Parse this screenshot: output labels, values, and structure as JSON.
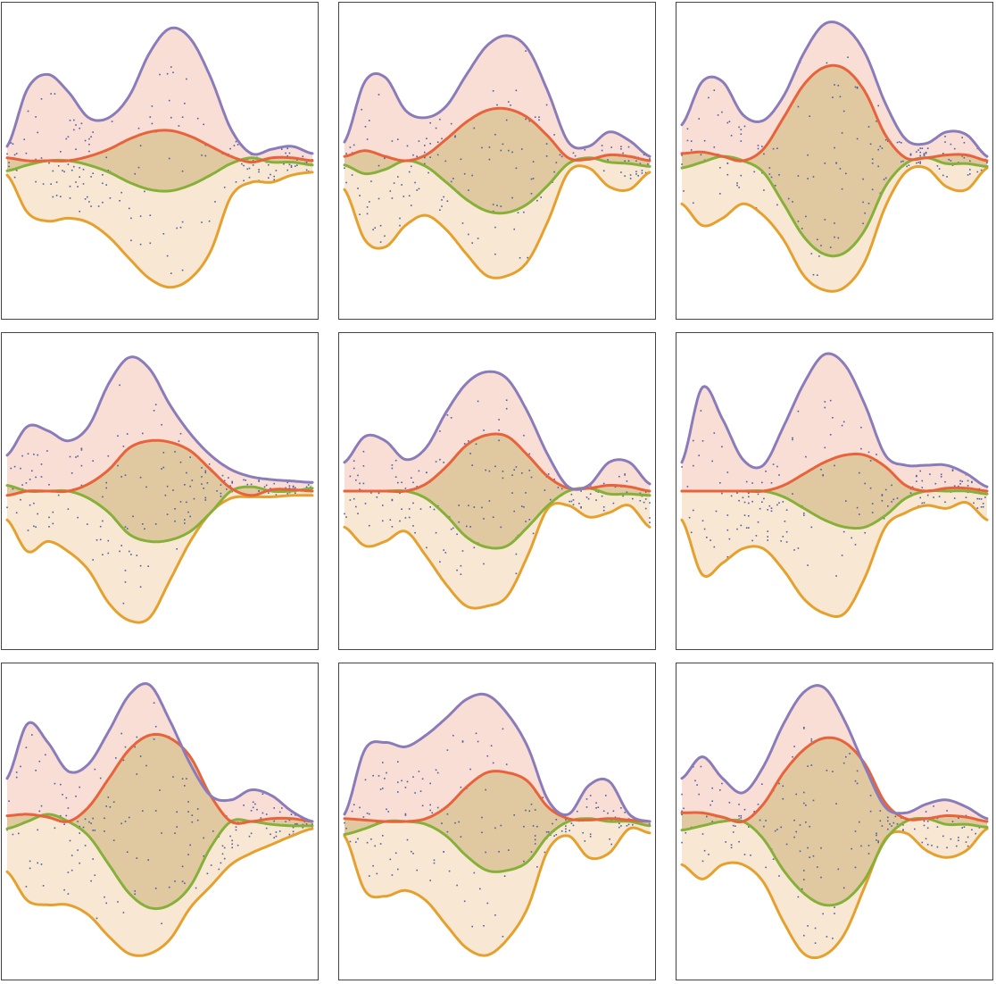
{
  "colors": {
    "upper_fill": "#f9ded6",
    "lower_fill": "#f8e8d3",
    "middle_fill": "#e5ecd3",
    "overlap_fill": "#e0c8a0",
    "purple_line": "#8a7cbb",
    "red_line": "#e8623b",
    "green_line": "#86b03a",
    "orange_line": "#e5a02d",
    "points": "#4a5fa8"
  },
  "chart_data": [
    {
      "type": "area",
      "x_range": [
        0,
        1
      ],
      "y_range": [
        -1,
        1
      ],
      "grid": false,
      "legend": "none",
      "purple": [
        0.1,
        0.5,
        0.6,
        0.48,
        0.3,
        0.3,
        0.45,
        0.75,
        0.92,
        0.85,
        0.58,
        0.22,
        0.05,
        0.08,
        0.1,
        0.05
      ],
      "red": [
        0.02,
        0.0,
        0.0,
        0.0,
        0.03,
        0.08,
        0.15,
        0.2,
        0.21,
        0.17,
        0.1,
        0.03,
        -0.01,
        0.02,
        0.02,
        0.0
      ],
      "green": [
        -0.07,
        -0.03,
        0.0,
        0.0,
        -0.03,
        -0.08,
        -0.15,
        -0.2,
        -0.21,
        -0.17,
        -0.1,
        -0.02,
        0.02,
        -0.01,
        -0.01,
        -0.03
      ],
      "orange": [
        -0.1,
        -0.36,
        -0.42,
        -0.4,
        -0.43,
        -0.53,
        -0.68,
        -0.82,
        -0.88,
        -0.82,
        -0.63,
        -0.25,
        -0.15,
        -0.15,
        -0.1,
        -0.08
      ],
      "points": 180
    },
    {
      "type": "area",
      "x_range": [
        0,
        1
      ],
      "y_range": [
        -1,
        1
      ],
      "grid": false,
      "legend": "none",
      "purple": [
        0.13,
        0.55,
        0.58,
        0.35,
        0.3,
        0.38,
        0.6,
        0.8,
        0.87,
        0.78,
        0.48,
        0.13,
        0.1,
        0.2,
        0.14,
        0.03
      ],
      "red": [
        0.03,
        0.07,
        0.03,
        0.0,
        0.04,
        0.15,
        0.27,
        0.35,
        0.36,
        0.3,
        0.17,
        0.02,
        0.01,
        0.04,
        0.03,
        0.0
      ],
      "green": [
        -0.03,
        -0.09,
        -0.06,
        0.0,
        -0.04,
        -0.15,
        -0.27,
        -0.35,
        -0.36,
        -0.3,
        -0.17,
        -0.02,
        0.02,
        -0.01,
        -0.02,
        -0.04
      ],
      "orange": [
        -0.2,
        -0.55,
        -0.6,
        -0.45,
        -0.38,
        -0.48,
        -0.65,
        -0.8,
        -0.8,
        -0.7,
        -0.42,
        -0.08,
        -0.05,
        -0.18,
        -0.2,
        -0.08
      ],
      "points": 180
    },
    {
      "type": "area",
      "x_range": [
        0,
        1
      ],
      "y_range": [
        -1,
        1
      ],
      "grid": false,
      "legend": "none",
      "purple": [
        0.25,
        0.55,
        0.55,
        0.32,
        0.28,
        0.45,
        0.75,
        0.95,
        0.93,
        0.75,
        0.4,
        0.15,
        0.12,
        0.2,
        0.18,
        0.03
      ],
      "red": [
        0.05,
        0.06,
        0.03,
        0.0,
        0.08,
        0.3,
        0.53,
        0.65,
        0.64,
        0.48,
        0.18,
        0.02,
        0.02,
        0.04,
        0.04,
        0.0
      ],
      "green": [
        -0.05,
        -0.01,
        0.03,
        0.0,
        -0.08,
        -0.3,
        -0.53,
        -0.65,
        -0.64,
        -0.48,
        -0.18,
        -0.02,
        0.02,
        -0.02,
        -0.02,
        -0.04
      ],
      "orange": [
        -0.3,
        -0.45,
        -0.4,
        -0.3,
        -0.38,
        -0.55,
        -0.8,
        -0.9,
        -0.88,
        -0.7,
        -0.32,
        -0.08,
        -0.05,
        -0.18,
        -0.2,
        -0.05
      ],
      "points": 180
    },
    {
      "type": "area",
      "x_range": [
        0,
        1
      ],
      "y_range": [
        -1,
        1
      ],
      "grid": false,
      "legend": "none",
      "purple": [
        0.25,
        0.45,
        0.42,
        0.35,
        0.45,
        0.75,
        0.93,
        0.85,
        0.6,
        0.4,
        0.25,
        0.15,
        0.1,
        0.08,
        0.07,
        0.06
      ],
      "red": [
        -0.03,
        0.0,
        0.0,
        0.0,
        0.05,
        0.15,
        0.3,
        0.35,
        0.34,
        0.28,
        0.15,
        0.02,
        -0.03,
        0.01,
        0.01,
        0.0
      ],
      "green": [
        0.04,
        0.0,
        0.0,
        0.0,
        -0.05,
        -0.15,
        -0.3,
        -0.35,
        -0.34,
        -0.28,
        -0.15,
        0.0,
        0.03,
        0.0,
        0.0,
        0.02
      ],
      "orange": [
        -0.2,
        -0.42,
        -0.35,
        -0.42,
        -0.55,
        -0.78,
        -0.9,
        -0.88,
        -0.62,
        -0.35,
        -0.15,
        -0.05,
        -0.04,
        -0.04,
        -0.03,
        -0.03
      ],
      "points": 180
    },
    {
      "type": "area",
      "x_range": [
        0,
        1
      ],
      "y_range": [
        -1,
        1
      ],
      "grid": false,
      "legend": "none",
      "purple": [
        0.2,
        0.38,
        0.35,
        0.22,
        0.3,
        0.55,
        0.75,
        0.83,
        0.78,
        0.55,
        0.25,
        0.03,
        0.04,
        0.2,
        0.2,
        0.05
      ],
      "red": [
        0.0,
        0.0,
        0.0,
        0.0,
        0.05,
        0.17,
        0.32,
        0.39,
        0.38,
        0.25,
        0.1,
        0.02,
        0.02,
        0.04,
        0.03,
        0.0
      ],
      "green": [
        0.0,
        0.0,
        0.0,
        0.0,
        -0.05,
        -0.17,
        -0.32,
        -0.39,
        -0.38,
        -0.25,
        -0.1,
        0.0,
        0.02,
        -0.02,
        -0.02,
        -0.03
      ],
      "orange": [
        -0.25,
        -0.38,
        -0.35,
        -0.28,
        -0.45,
        -0.65,
        -0.8,
        -0.8,
        -0.73,
        -0.45,
        -0.12,
        -0.1,
        -0.18,
        -0.15,
        -0.1,
        -0.25
      ],
      "points": 180
    },
    {
      "type": "area",
      "x_range": [
        0,
        1
      ],
      "y_range": [
        -1,
        1
      ],
      "grid": false,
      "legend": "none",
      "purple": [
        0.2,
        0.72,
        0.5,
        0.22,
        0.18,
        0.45,
        0.75,
        0.95,
        0.88,
        0.6,
        0.25,
        0.18,
        0.18,
        0.18,
        0.12,
        0.03
      ],
      "red": [
        0.0,
        0.0,
        0.0,
        0.0,
        0.0,
        0.04,
        0.12,
        0.2,
        0.25,
        0.25,
        0.17,
        0.04,
        0.0,
        0.02,
        0.02,
        0.0
      ],
      "green": [
        0.0,
        0.0,
        0.0,
        0.0,
        0.0,
        -0.04,
        -0.12,
        -0.2,
        -0.25,
        -0.25,
        -0.17,
        -0.05,
        0.0,
        0.0,
        0.0,
        -0.02
      ],
      "orange": [
        -0.2,
        -0.58,
        -0.5,
        -0.4,
        -0.4,
        -0.55,
        -0.75,
        -0.85,
        -0.85,
        -0.6,
        -0.25,
        -0.15,
        -0.1,
        -0.12,
        -0.08,
        -0.2
      ],
      "points": 180
    },
    {
      "type": "area",
      "x_range": [
        0,
        1
      ],
      "y_range": [
        -1,
        1
      ],
      "grid": false,
      "legend": "none",
      "purple": [
        0.3,
        0.68,
        0.55,
        0.35,
        0.4,
        0.63,
        0.88,
        0.95,
        0.7,
        0.4,
        0.18,
        0.15,
        0.22,
        0.18,
        0.07,
        0.0
      ],
      "red": [
        0.04,
        0.05,
        0.03,
        0.0,
        0.1,
        0.3,
        0.5,
        0.6,
        0.58,
        0.45,
        0.18,
        0.0,
        0.0,
        0.02,
        0.02,
        0.0
      ],
      "green": [
        -0.05,
        0.0,
        0.05,
        0.0,
        -0.1,
        -0.3,
        -0.5,
        -0.6,
        -0.58,
        -0.45,
        -0.18,
        0.0,
        0.0,
        -0.02,
        -0.03,
        -0.03
      ],
      "orange": [
        -0.35,
        -0.55,
        -0.58,
        -0.58,
        -0.65,
        -0.8,
        -0.92,
        -0.92,
        -0.82,
        -0.6,
        -0.45,
        -0.3,
        -0.22,
        -0.16,
        -0.1,
        -0.05
      ],
      "points": 180
    },
    {
      "type": "area",
      "x_range": [
        0,
        1
      ],
      "y_range": [
        -1,
        1
      ],
      "grid": false,
      "legend": "none",
      "purple": [
        0.05,
        0.5,
        0.55,
        0.52,
        0.6,
        0.72,
        0.85,
        0.88,
        0.75,
        0.52,
        0.15,
        0.05,
        0.25,
        0.28,
        0.05,
        0.0
      ],
      "red": [
        0.02,
        0.01,
        0.0,
        0.0,
        0.02,
        0.1,
        0.24,
        0.34,
        0.34,
        0.28,
        0.1,
        0.02,
        0.01,
        0.02,
        0.01,
        0.0
      ],
      "green": [
        -0.09,
        -0.05,
        0.0,
        0.0,
        -0.02,
        -0.1,
        -0.24,
        -0.34,
        -0.34,
        -0.28,
        -0.1,
        0.0,
        0.02,
        0.0,
        0.0,
        -0.03
      ],
      "orange": [
        -0.1,
        -0.48,
        -0.52,
        -0.48,
        -0.55,
        -0.72,
        -0.88,
        -0.93,
        -0.82,
        -0.6,
        -0.2,
        -0.1,
        -0.25,
        -0.22,
        -0.05,
        -0.08
      ],
      "points": 180
    },
    {
      "type": "area",
      "x_range": [
        0,
        1
      ],
      "y_range": [
        -1,
        1
      ],
      "grid": false,
      "legend": "none",
      "purple": [
        0.3,
        0.45,
        0.3,
        0.2,
        0.38,
        0.68,
        0.9,
        0.93,
        0.7,
        0.38,
        0.1,
        0.06,
        0.12,
        0.15,
        0.1,
        0.02
      ],
      "red": [
        0.06,
        0.06,
        0.03,
        0.0,
        0.12,
        0.34,
        0.5,
        0.58,
        0.55,
        0.4,
        0.13,
        0.02,
        0.02,
        0.04,
        0.03,
        0.0
      ],
      "green": [
        -0.06,
        -0.03,
        0.0,
        0.0,
        -0.12,
        -0.34,
        -0.5,
        -0.58,
        -0.55,
        -0.4,
        -0.13,
        0.0,
        0.02,
        -0.02,
        -0.02,
        -0.04
      ],
      "orange": [
        -0.3,
        -0.4,
        -0.3,
        -0.3,
        -0.42,
        -0.7,
        -0.92,
        -0.93,
        -0.78,
        -0.45,
        -0.12,
        -0.08,
        -0.2,
        -0.25,
        -0.2,
        -0.05
      ],
      "points": 180
    }
  ]
}
